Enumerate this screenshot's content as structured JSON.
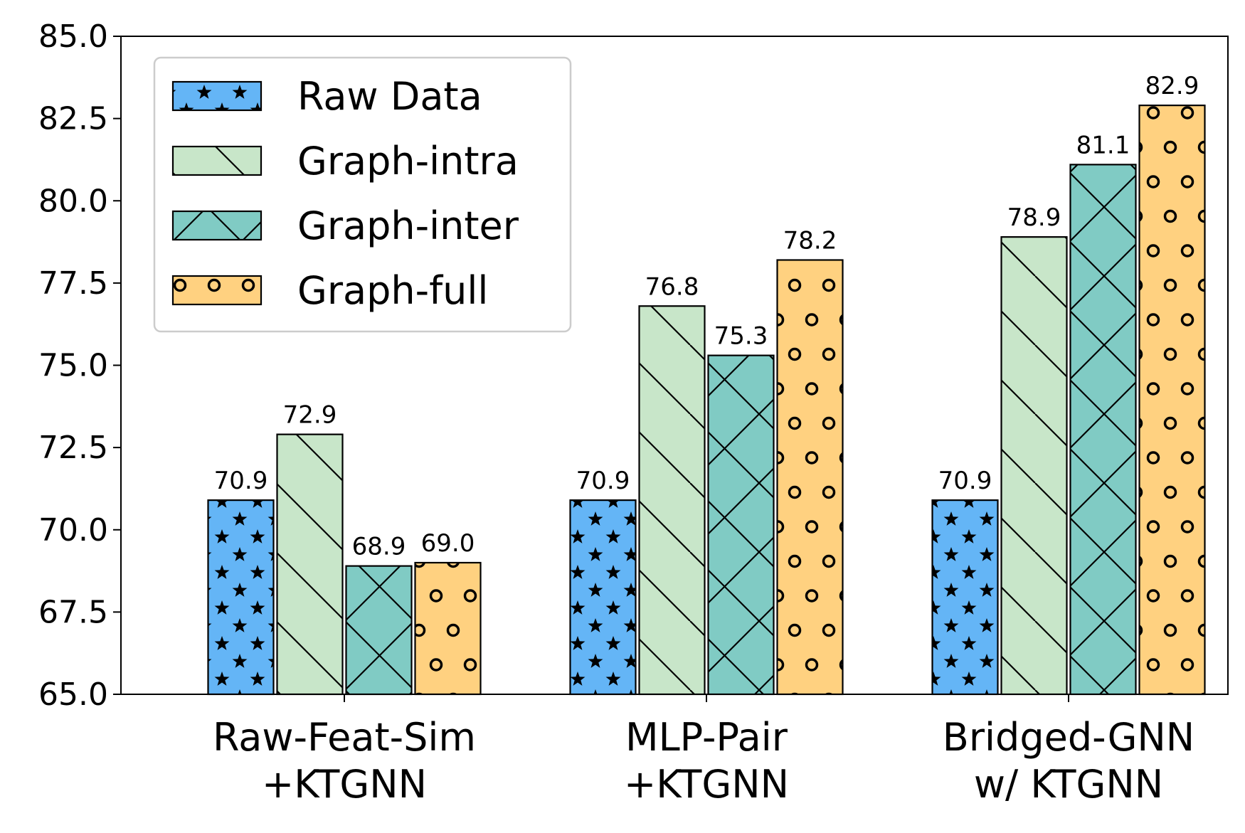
{
  "chart_data": {
    "type": "bar",
    "title": "",
    "xlabel": "",
    "ylabel": "",
    "ylim": [
      65.0,
      85.0
    ],
    "yticks": [
      "65.0",
      "67.5",
      "70.0",
      "72.5",
      "75.0",
      "77.5",
      "80.0",
      "82.5",
      "85.0"
    ],
    "grid": false,
    "legend_position": "top-left",
    "categories": [
      [
        "Raw-Feat-Sim",
        "+KTGNN"
      ],
      [
        "MLP-Pair",
        "+KTGNN"
      ],
      [
        "Bridged-GNN",
        "w/ KTGNN"
      ]
    ],
    "series": [
      {
        "name": "Raw Data",
        "values": [
          70.9,
          70.9,
          70.9
        ],
        "labels": [
          "70.9",
          "70.9",
          "70.9"
        ],
        "color": "#64b5f6",
        "pattern": "stars"
      },
      {
        "name": "Graph-intra",
        "values": [
          72.9,
          76.8,
          78.9
        ],
        "labels": [
          "72.9",
          "76.8",
          "78.9"
        ],
        "color": "#c8e6c9",
        "pattern": "backslash"
      },
      {
        "name": "Graph-inter",
        "values": [
          68.9,
          75.3,
          81.1
        ],
        "labels": [
          "68.9",
          "75.3",
          "81.1"
        ],
        "color": "#80cbc4",
        "pattern": "crosshatch"
      },
      {
        "name": "Graph-full",
        "values": [
          69.0,
          78.2,
          82.9
        ],
        "labels": [
          "69.0",
          "78.2",
          "82.9"
        ],
        "color": "#ffd180",
        "pattern": "circles"
      }
    ]
  }
}
